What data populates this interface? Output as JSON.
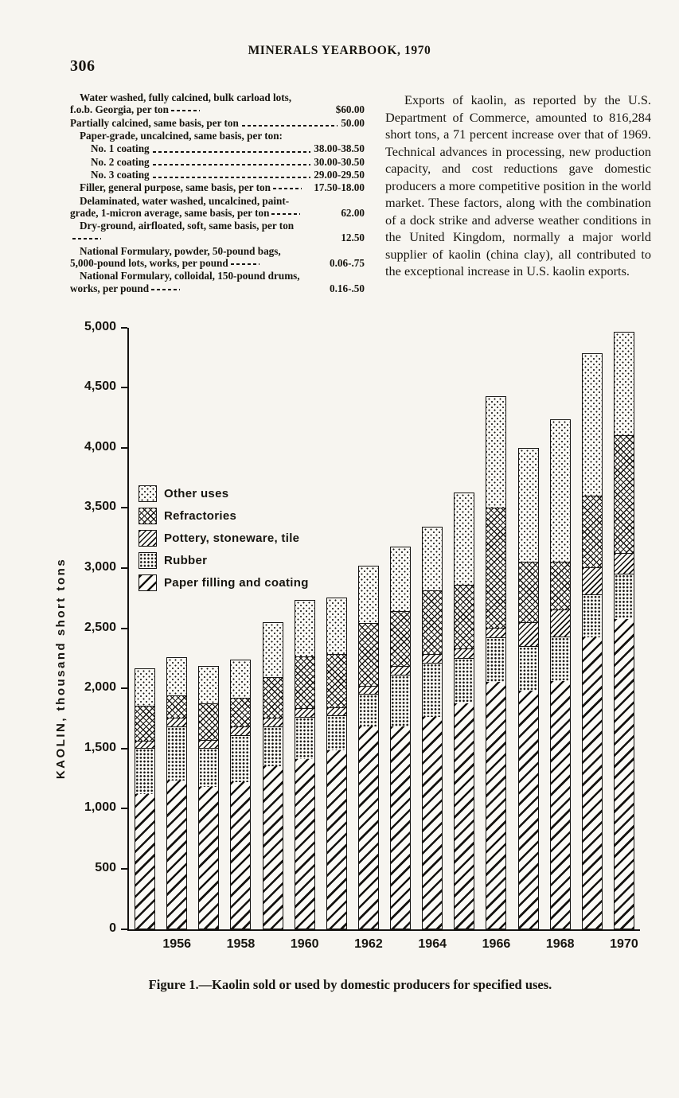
{
  "page": {
    "page_number": "306",
    "header_title": "MINERALS YEARBOOK, 1970"
  },
  "price_list": {
    "entries": [
      {
        "label": "Water washed, fully calcined, bulk carload lots, f.o.b. Georgia, per ton",
        "price": "$60.00",
        "indent": 0
      },
      {
        "label": "Partially calcined, same basis, per ton",
        "price": "50.00",
        "indent": 0
      },
      {
        "label": "Paper-grade, uncalcined, same basis, per ton:",
        "price": "",
        "indent": 0
      },
      {
        "label": "No. 1 coating",
        "price": "38.00-38.50",
        "indent": 1
      },
      {
        "label": "No. 2 coating",
        "price": "30.00-30.50",
        "indent": 1
      },
      {
        "label": "No. 3 coating",
        "price": "29.00-29.50",
        "indent": 1
      },
      {
        "label": "Filler, general purpose, same basis, per ton",
        "price": "17.50-18.00",
        "indent": 0
      },
      {
        "label": "Delaminated, water washed, uncalcined, paint-grade, 1-micron average, same basis, per ton",
        "price": "62.00",
        "indent": 0
      },
      {
        "label": "Dry-ground, airfloated, soft, same basis, per ton",
        "price": "12.50",
        "indent": 0
      },
      {
        "label": "National Formulary, powder, 50-pound bags, 5,000-pound lots, works, per pound",
        "price": "0.06-.75",
        "indent": 0
      },
      {
        "label": "National Formulary, colloidal, 150-pound drums, works, per pound",
        "price": "0.16-.50",
        "indent": 0
      }
    ]
  },
  "article": {
    "paragraph": "Exports of kaolin, as reported by the U.S. Department of Commerce, amounted to 816,284 short tons, a 71 percent increase over that of 1969. Technical advances in processing, new production capacity, and cost reductions gave domestic producers a more competitive position in the world market. These factors, along with the combination of a dock strike and adverse weather conditions in the United Kingdom, normally a major world supplier of kaolin (china clay), all contributed to the exceptional increase in U.S. kaolin exports."
  },
  "figure": {
    "caption": "Figure 1.—Kaolin sold or used by domestic producers for specified uses."
  },
  "chart_data": {
    "type": "bar",
    "stacked": true,
    "title": "",
    "xlabel": "",
    "ylabel": "KAOLIN, thousand short tons",
    "ylim": [
      0,
      5000
    ],
    "ytick_interval": 500,
    "ytick_labels": [
      "0",
      "500",
      "1,000",
      "1,500",
      "2,000",
      "2,500",
      "3,000",
      "3,500",
      "4,000",
      "4,500",
      "5,000"
    ],
    "years": [
      1955,
      1956,
      1957,
      1958,
      1959,
      1960,
      1961,
      1962,
      1963,
      1964,
      1965,
      1966,
      1967,
      1968,
      1969,
      1970
    ],
    "xtick_labels": [
      "1956",
      "1958",
      "1960",
      "1962",
      "1964",
      "1966",
      "1968",
      "1970"
    ],
    "legend_position": "upper-left-inside",
    "grid": false,
    "legend": [
      {
        "label": "Other uses",
        "pattern": "stipple"
      },
      {
        "label": "Refractories",
        "pattern": "crosshatch"
      },
      {
        "label": "Pottery, stoneware, tile",
        "pattern": "diagonal-dense"
      },
      {
        "label": "Rubber",
        "pattern": "dots"
      },
      {
        "label": "Paper filling and coating",
        "pattern": "diagonal-wide"
      }
    ],
    "series": [
      {
        "key": "paper",
        "name": "Paper filling and coating",
        "pattern": "diagonal-wide",
        "values": [
          1120,
          1230,
          1180,
          1220,
          1350,
          1410,
          1480,
          1680,
          1680,
          1760,
          1870,
          2050,
          1980,
          2060,
          2420,
          2570
        ]
      },
      {
        "key": "rubber",
        "name": "Rubber",
        "pattern": "dots",
        "values": [
          380,
          450,
          320,
          390,
          330,
          350,
          290,
          270,
          430,
          450,
          380,
          370,
          370,
          370,
          360,
          380
        ]
      },
      {
        "key": "pottery",
        "name": "Pottery, stoneware, tile",
        "pattern": "diagonal-dense",
        "values": [
          60,
          70,
          70,
          70,
          70,
          70,
          70,
          70,
          70,
          70,
          80,
          80,
          200,
          220,
          220,
          170
        ]
      },
      {
        "key": "refractories",
        "name": "Refractories",
        "pattern": "crosshatch",
        "values": [
          290,
          190,
          300,
          240,
          340,
          430,
          440,
          520,
          460,
          530,
          530,
          1000,
          500,
          400,
          600,
          980
        ]
      },
      {
        "key": "other",
        "name": "Other uses",
        "pattern": "stipple",
        "values": [
          320,
          320,
          320,
          320,
          460,
          480,
          480,
          480,
          540,
          540,
          770,
          930,
          950,
          1190,
          1190,
          870
        ]
      }
    ],
    "totals": [
      2170,
      2260,
      2190,
      2240,
      2550,
      2740,
      2760,
      3020,
      3180,
      3350,
      3630,
      4430,
      4000,
      4240,
      4790,
      4970
    ],
    "ink_color": "#151310",
    "paper_color": "#f7f5f0"
  }
}
